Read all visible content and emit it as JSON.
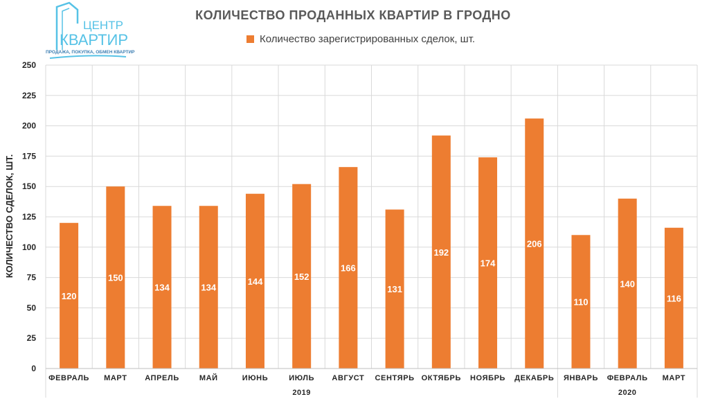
{
  "logo": {
    "line1": "ЦЕНТР",
    "line2": "КВАРТИР",
    "tagline": "ПРОДАЖА, ПОКУПКА, ОБМЕН КВАРТИР"
  },
  "colors": {
    "bar": "#ed7d31",
    "grid": "#d9d9d9",
    "text": "#262626",
    "label_text": "#ffffff",
    "logo": "#56c2e6"
  },
  "chart_data": {
    "type": "bar",
    "title": "КОЛИЧЕСТВО ПРОДАННЫХ КВАРТИР В ГРОДНО",
    "xlabel": "",
    "ylabel": "КОЛИЧЕСТВО СДЕЛОК, ШТ.",
    "ylim": [
      0,
      250
    ],
    "yticks": [
      0,
      25,
      50,
      75,
      100,
      125,
      150,
      175,
      200,
      225,
      250
    ],
    "grid": true,
    "legend_position": "top",
    "categories": [
      "ФЕВРАЛЬ",
      "МАРТ",
      "АПРЕЛЬ",
      "МАЙ",
      "ИЮНЬ",
      "ИЮЛЬ",
      "АВГУСТ",
      "СЕНТЯРЬ",
      "ОКТЯБРЬ",
      "НОЯБРЬ",
      "ДЕКАБРЬ",
      "ЯНВАРЬ",
      "ФЕВРАЛЬ",
      "МАРТ"
    ],
    "category_groups": [
      {
        "label": "2019",
        "start": 0,
        "end": 10
      },
      {
        "label": "2020",
        "start": 11,
        "end": 13
      }
    ],
    "series": [
      {
        "name": "Количество зарегистрированных сделок, шт.",
        "values": [
          120,
          150,
          134,
          134,
          144,
          152,
          166,
          131,
          192,
          174,
          206,
          110,
          140,
          116
        ]
      }
    ]
  }
}
